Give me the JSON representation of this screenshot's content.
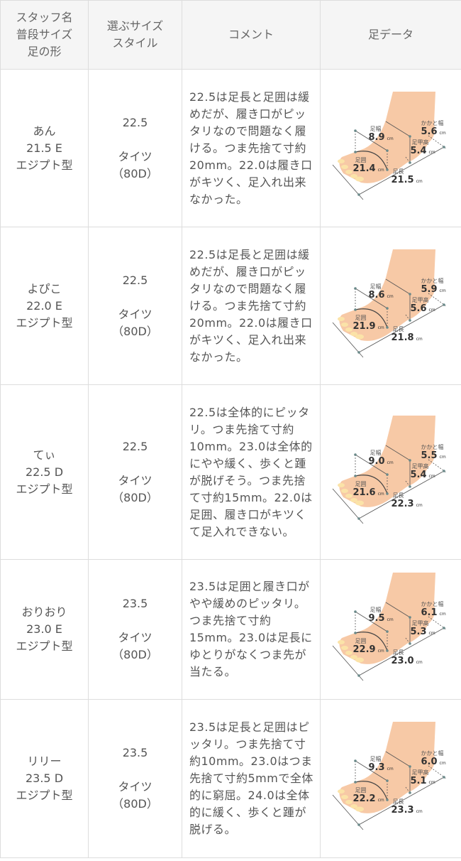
{
  "header": {
    "col1": [
      "スタッフ名",
      "普段サイズ",
      "足の形"
    ],
    "col2": [
      "選ぶサイズ",
      "スタイル"
    ],
    "col3": "コメント",
    "col4": "足データ"
  },
  "labels": {
    "width": "足幅",
    "girth": "足囲",
    "length": "足長",
    "instep": "足甲高",
    "heel": "かかと幅",
    "unit": "cm"
  },
  "rows": [
    {
      "name": "あん",
      "size": "21.5 E",
      "shape": "エジプト型",
      "choice": "22.5",
      "style": "タイツ",
      "denier": "（80D）",
      "comment": "22.5は足長と足囲は緩めだが、履き口がピッタリなので問題なく履ける。つま先捨て寸約20mm。22.0は履き口がキツく、足入れ出来なかった。",
      "foot": {
        "width": "8.9",
        "girth": "21.4",
        "length": "21.5",
        "instep": "5.4",
        "heel": "5.6"
      }
    },
    {
      "name": "よぴこ",
      "size": "22.0 E",
      "shape": "エジプト型",
      "choice": "22.5",
      "style": "タイツ",
      "denier": "（80D）",
      "comment": "22.5は足長と足囲は緩めだが、履き口がピッタリなので問題なく履ける。つま先捨て寸約20mm。22.0は履き口がキツく、足入れ出来なかった。",
      "foot": {
        "width": "8.6",
        "girth": "21.9",
        "length": "21.8",
        "instep": "5.6",
        "heel": "5.9"
      }
    },
    {
      "name": "てぃ",
      "size": "22.5 D",
      "shape": "エジプト型",
      "choice": "22.5",
      "style": "タイツ",
      "denier": "（80D）",
      "comment": "22.5は全体的にピッタリ。つま先捨て寸約10mm。23.0は全体的にやや緩く、歩くと踵が脱げそう。つま先捨て寸約15mm。22.0は足囲、履き口がキツくて足入れできない。",
      "foot": {
        "width": "9.0",
        "girth": "21.6",
        "length": "22.3",
        "instep": "5.4",
        "heel": "5.5"
      }
    },
    {
      "name": "おりおり",
      "size": "23.0 E",
      "shape": "エジプト型",
      "choice": "23.5",
      "style": "タイツ",
      "denier": "（80D）",
      "comment": "23.5は足囲と履き口がやや緩めのピッタリ。つま先捨て寸約15mm。23.0は足長にゆとりがなくつま先が当たる。",
      "foot": {
        "width": "9.5",
        "girth": "22.9",
        "length": "23.0",
        "instep": "5.3",
        "heel": "6.1"
      }
    },
    {
      "name": "リリー",
      "size": "23.5 D",
      "shape": "エジプト型",
      "choice": "23.5",
      "style": "タイツ",
      "denier": "（80D）",
      "comment": "23.5は足長と足囲はピッタリ。つま先捨て寸約10mm。23.0はつま先捨て寸約5mmで全体的に窮屈。24.0は全体的に緩く、歩くと踵が脱げる。",
      "foot": {
        "width": "9.3",
        "girth": "22.2",
        "length": "23.3",
        "instep": "5.1",
        "heel": "6.0"
      }
    }
  ]
}
